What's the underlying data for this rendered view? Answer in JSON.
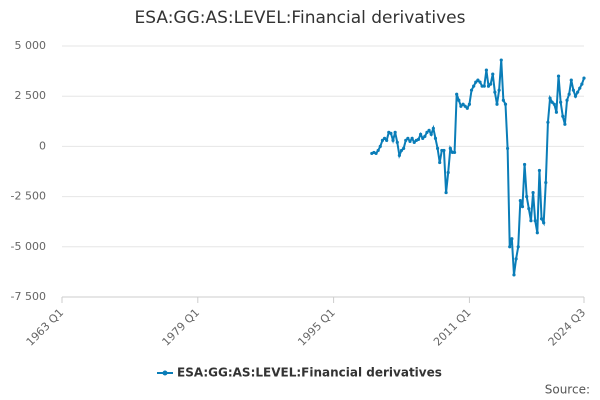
{
  "chart_data": {
    "type": "line",
    "title": "ESA:GG:AS:LEVEL:Financial derivatives",
    "x": [
      1999.5,
      1999.75,
      2000,
      2000.25,
      2000.5,
      2000.75,
      2001,
      2001.25,
      2001.5,
      2001.75,
      2002,
      2002.25,
      2002.5,
      2002.75,
      2003,
      2003.25,
      2003.5,
      2003.75,
      2004,
      2004.25,
      2004.5,
      2004.75,
      2005,
      2005.25,
      2005.5,
      2005.75,
      2006,
      2006.25,
      2006.5,
      2006.75,
      2007,
      2007.25,
      2007.5,
      2007.75,
      2008,
      2008.25,
      2008.5,
      2008.75,
      2009,
      2009.25,
      2009.5,
      2009.75,
      2010,
      2010.25,
      2010.5,
      2010.75,
      2011,
      2011.25,
      2011.5,
      2011.75,
      2012,
      2012.25,
      2012.5,
      2012.75,
      2013,
      2013.25,
      2013.5,
      2013.75,
      2014,
      2014.25,
      2014.5,
      2014.75,
      2015,
      2015.25,
      2015.5,
      2015.75,
      2016,
      2016.25,
      2016.5,
      2016.75,
      2017,
      2017.25,
      2017.5,
      2017.75,
      2018,
      2018.25,
      2018.5,
      2018.75,
      2019,
      2019.25,
      2019.5,
      2019.75,
      2020,
      2020.25,
      2020.5,
      2020.75,
      2021,
      2021.25,
      2021.5,
      2021.75,
      2022,
      2022.25,
      2022.5,
      2022.75,
      2023,
      2023.25,
      2023.5,
      2023.75,
      2024,
      2024.25,
      2024.5
    ],
    "series": [
      {
        "name": "ESA:GG:AS:LEVEL:Financial derivatives",
        "color": "#0a7db8",
        "values": [
          -350,
          -300,
          -350,
          -200,
          0,
          300,
          400,
          300,
          700,
          650,
          300,
          700,
          200,
          -450,
          -200,
          -100,
          300,
          400,
          250,
          400,
          200,
          300,
          350,
          600,
          400,
          500,
          700,
          800,
          600,
          900,
          400,
          -100,
          -800,
          -200,
          -200,
          -2300,
          -1300,
          -100,
          -300,
          -300,
          2600,
          2300,
          2000,
          2100,
          2000,
          1900,
          2100,
          2800,
          3000,
          3200,
          3300,
          3200,
          3000,
          3000,
          3800,
          3000,
          3100,
          3600,
          2700,
          2100,
          2800,
          4300,
          2300,
          2100,
          -100,
          -5000,
          -4600,
          -6400,
          -5600,
          -5000,
          -2700,
          -3000,
          -900,
          -2500,
          -3100,
          -3700,
          -2300,
          -3700,
          -4300,
          -1200,
          -3600,
          -3800,
          -1800,
          1200,
          2400,
          2200,
          2100,
          1700,
          3500,
          2200,
          1500,
          1100,
          2300,
          2600,
          3300,
          2800,
          2500,
          2700,
          2900,
          3100,
          3400
        ]
      }
    ],
    "xlim": [
      1963,
      2024.5
    ],
    "xticks": [
      {
        "value": 1963,
        "label": "1963 Q1"
      },
      {
        "value": 1979,
        "label": "1979 Q1"
      },
      {
        "value": 1995,
        "label": "1995 Q1"
      },
      {
        "value": 2011,
        "label": "2011 Q1"
      },
      {
        "value": 2024.5,
        "label": "2024 Q3"
      }
    ],
    "ylim": [
      -7500,
      5000
    ],
    "yticks": [
      {
        "value": -7500,
        "label": "-7 500"
      },
      {
        "value": -5000,
        "label": "-5 000"
      },
      {
        "value": -2500,
        "label": "-2 500"
      },
      0,
      {
        "value": 2500,
        "label": "2 500"
      },
      {
        "value": 5000,
        "label": "5 000"
      }
    ],
    "grid": true,
    "legend": "bottom",
    "source": "Source:"
  }
}
